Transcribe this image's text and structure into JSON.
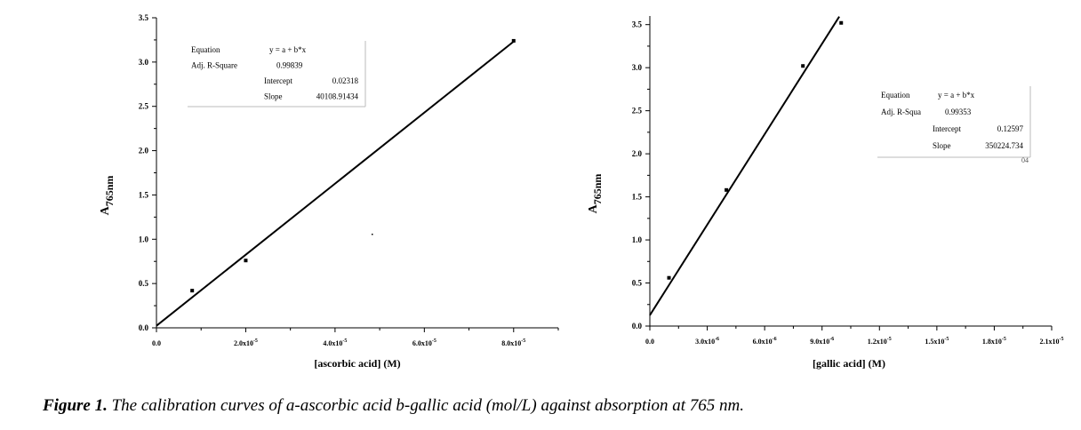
{
  "caption": {
    "label": "Figure 1.",
    "text": "The calibration curves of a-ascorbic acid b-gallic acid (mol/L) against absorption at 765 nm."
  },
  "chart_data": [
    {
      "type": "scatter",
      "title": "",
      "xlabel": "[ascorbic acid]  (M)",
      "ylabel": "A765nm",
      "ylabel_main": "A",
      "ylabel_sub": "765nm",
      "xlim": [
        0,
        9e-05
      ],
      "ylim": [
        0,
        3.5
      ],
      "xticks": [
        0,
        2e-05,
        4e-05,
        6e-05,
        8e-05
      ],
      "xtick_labels": [
        "0.0",
        "2.0x10-5",
        "4.0x10-5",
        "6.0x10-5",
        "8.0x10-5"
      ],
      "xtick_base": [
        "0.0",
        "2.0x10",
        "4.0x10",
        "6.0x10",
        "8.0x10"
      ],
      "xtick_exp": [
        "",
        "-5",
        "-5",
        "-5",
        "-5"
      ],
      "yticks": [
        0,
        0.5,
        1.0,
        1.5,
        2.0,
        2.5,
        3.0,
        3.5
      ],
      "ytick_labels": [
        "0.0",
        "0.5",
        "1.0",
        "1.5",
        "2.0",
        "2.5",
        "3.0",
        "3.5"
      ],
      "series": [
        {
          "x": [
            8e-06,
            2e-05,
            8e-05
          ],
          "y": [
            0.42,
            0.76,
            3.24
          ]
        }
      ],
      "fit": {
        "intercept": 0.02318,
        "slope": 40108.91434,
        "x_range": [
          0,
          8e-05
        ]
      },
      "legend_position": "top-left",
      "fit_table": [
        [
          "Equation",
          "y = a + b*x"
        ],
        [
          "Adj. R-Square",
          "0.99839"
        ],
        [
          "Intercept",
          "0.02318"
        ],
        [
          "Slope",
          "40108.91434"
        ]
      ]
    },
    {
      "type": "scatter",
      "title": "",
      "xlabel": "[gallic acid]  (M)",
      "ylabel": "A765nm",
      "ylabel_main": "A",
      "ylabel_sub": "765nm",
      "xlim": [
        0,
        2.1e-05
      ],
      "ylim": [
        0,
        3.6
      ],
      "xticks": [
        0,
        3e-06,
        6e-06,
        9e-06,
        1.2e-05,
        1.5e-05,
        1.8e-05,
        2.1e-05
      ],
      "xtick_labels": [
        "0.0",
        "3.0x10-6",
        "6.0x10-6",
        "9.0x10-6",
        "1.2x10-5",
        "1.5x10-5",
        "1.8x10-5",
        "2.1x10-5"
      ],
      "xtick_base": [
        "0.0",
        "3.0x10",
        "6.0x10",
        "9.0x10",
        "1.2x10",
        "1.5x10",
        "1.8x10",
        "2.1x10"
      ],
      "xtick_exp": [
        "",
        "-6",
        "-6",
        "-6",
        "-5",
        "-5",
        "-5",
        "-5"
      ],
      "yticks": [
        0,
        0.5,
        1.0,
        1.5,
        2.0,
        2.5,
        3.0,
        3.5
      ],
      "ytick_labels": [
        "0.0",
        "0.5",
        "1.0",
        "1.5",
        "2.0",
        "2.5",
        "3.0",
        "3.5"
      ],
      "series": [
        {
          "x": [
            1e-06,
            4e-06,
            8e-06,
            1e-05
          ],
          "y": [
            0.56,
            1.58,
            3.02,
            3.52
          ]
        }
      ],
      "fit": {
        "intercept": 0.12597,
        "slope": 350224.734,
        "x_range": [
          0,
          9.9e-06
        ]
      },
      "legend_position": "right",
      "fit_table": [
        [
          "Equation",
          "y = a + b*x"
        ],
        [
          "Adj. R-Squa",
          "0.99353"
        ],
        [
          "Intercept",
          "0.12597"
        ],
        [
          "Slope",
          "350224.734"
        ]
      ],
      "fit_table_note": "04"
    }
  ]
}
